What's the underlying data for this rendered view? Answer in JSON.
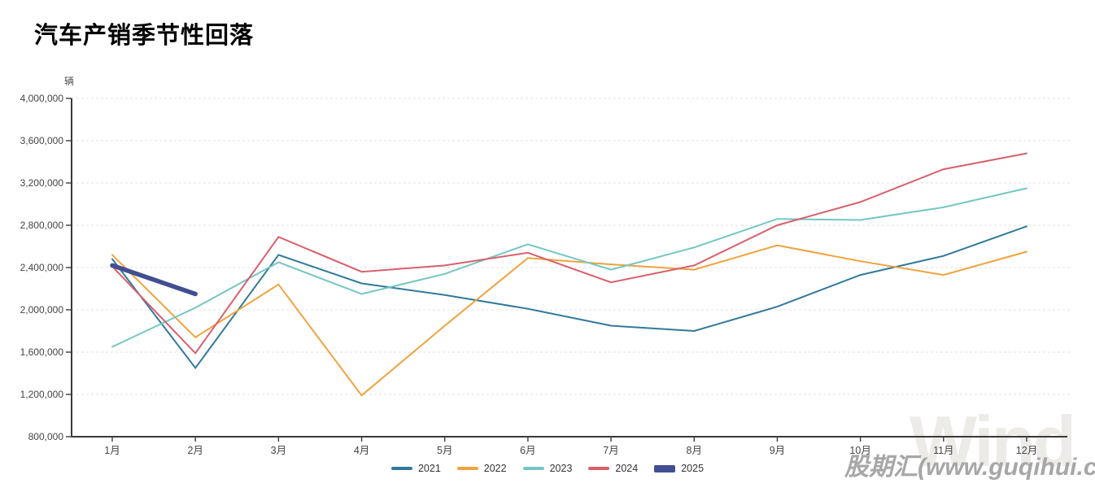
{
  "title": "汽车产销季节性回落",
  "watermark": {
    "logo": "Wind",
    "site": "股期汇(www.guqihui.cn)"
  },
  "chart_data": {
    "type": "line",
    "title": "汽车产销季节性回落",
    "unit_label": "辆",
    "xlabel": "",
    "ylabel": "辆",
    "categories": [
      "1月",
      "2月",
      "3月",
      "4月",
      "5月",
      "6月",
      "7月",
      "8月",
      "9月",
      "10月",
      "11月",
      "12月"
    ],
    "y_axis": {
      "min": 800000,
      "max": 4000000,
      "step": 400000,
      "tick_labels": [
        "800,000",
        "1,200,000",
        "1,600,000",
        "2,000,000",
        "2,400,000",
        "2,800,000",
        "3,200,000",
        "3,600,000",
        "4,000,000"
      ]
    },
    "grid": "horizontal-dashed",
    "legend_position": "bottom-center",
    "series": [
      {
        "name": "2021",
        "color": "#31799c",
        "line_width": 2,
        "values": [
          2480000,
          1450000,
          2520000,
          2250000,
          2140000,
          2010000,
          1850000,
          1800000,
          2030000,
          2330000,
          2510000,
          2790000
        ]
      },
      {
        "name": "2022",
        "color": "#f0a33e",
        "line_width": 2,
        "values": [
          2520000,
          1740000,
          2240000,
          1190000,
          1850000,
          2490000,
          2430000,
          2380000,
          2610000,
          2460000,
          2330000,
          2550000
        ]
      },
      {
        "name": "2023",
        "color": "#74c6c3",
        "line_width": 2,
        "values": [
          1650000,
          2020000,
          2450000,
          2150000,
          2340000,
          2620000,
          2380000,
          2590000,
          2860000,
          2850000,
          2970000,
          3150000
        ]
      },
      {
        "name": "2024",
        "color": "#d8606c",
        "line_width": 2,
        "values": [
          2410000,
          1590000,
          2690000,
          2360000,
          2420000,
          2540000,
          2260000,
          2420000,
          2800000,
          3020000,
          3330000,
          3480000
        ]
      },
      {
        "name": "2025",
        "color": "#414e92",
        "line_width": 5.5,
        "values": [
          2420000,
          2150000,
          null,
          null,
          null,
          null,
          null,
          null,
          null,
          null,
          null,
          null
        ]
      }
    ]
  }
}
